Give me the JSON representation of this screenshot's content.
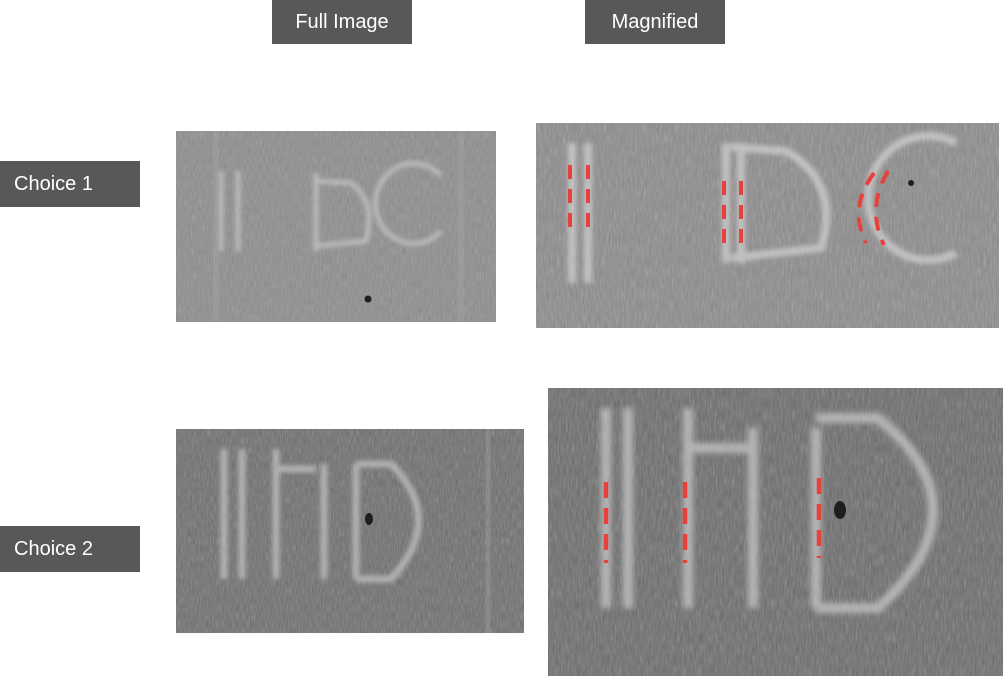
{
  "column_headers": {
    "full_image": "Full Image",
    "magnified": "Magnified"
  },
  "choices": [
    {
      "label": "Choice 1"
    },
    {
      "label": "Choice 2"
    }
  ],
  "colors": {
    "label_background": "#58585a",
    "label_text": "#ffffff",
    "annotation_marks": "#e8403a"
  }
}
